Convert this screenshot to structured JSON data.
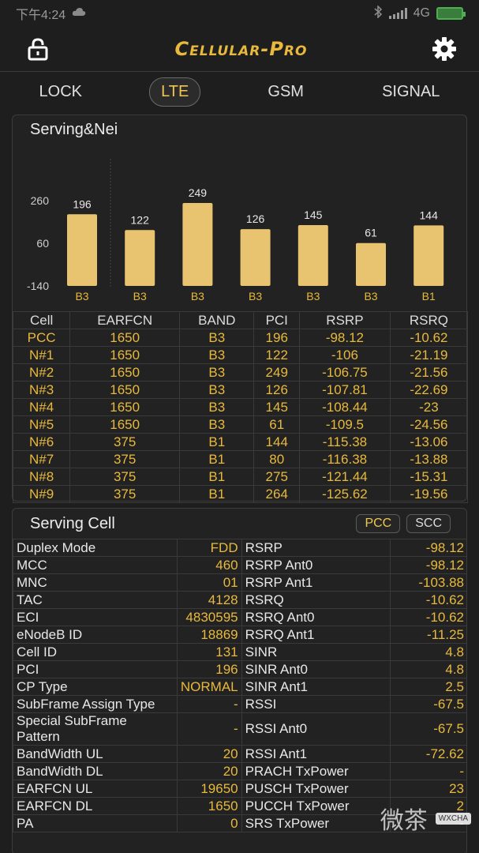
{
  "status": {
    "time": "下午4:24",
    "network": "4G"
  },
  "app": {
    "title": "Cellular-Pro"
  },
  "tabs": [
    {
      "label": "LOCK",
      "active": false
    },
    {
      "label": "LTE",
      "active": true
    },
    {
      "label": "GSM",
      "active": false
    },
    {
      "label": "SIGNAL",
      "active": false
    }
  ],
  "chart_data": {
    "type": "bar",
    "title": "Serving&Nei",
    "categories": [
      "B3",
      "B3",
      "B3",
      "B3",
      "B3",
      "B3",
      "B1"
    ],
    "values": [
      196,
      122,
      249,
      126,
      145,
      61,
      144
    ],
    "yticks": [
      260,
      60,
      -140
    ],
    "ylim": [
      -140,
      260
    ],
    "bar_color": "#e8c370"
  },
  "nei_table": {
    "headers": [
      "Cell",
      "EARFCN",
      "BAND",
      "PCI",
      "RSRP",
      "RSRQ"
    ],
    "rows": [
      [
        "PCC",
        "1650",
        "B3",
        "196",
        "-98.12",
        "-10.62"
      ],
      [
        "N#1",
        "1650",
        "B3",
        "122",
        "-106",
        "-21.19"
      ],
      [
        "N#2",
        "1650",
        "B3",
        "249",
        "-106.75",
        "-21.56"
      ],
      [
        "N#3",
        "1650",
        "B3",
        "126",
        "-107.81",
        "-22.69"
      ],
      [
        "N#4",
        "1650",
        "B3",
        "145",
        "-108.44",
        "-23"
      ],
      [
        "N#5",
        "1650",
        "B3",
        "61",
        "-109.5",
        "-24.56"
      ],
      [
        "N#6",
        "375",
        "B1",
        "144",
        "-115.38",
        "-13.06"
      ],
      [
        "N#7",
        "375",
        "B1",
        "80",
        "-116.38",
        "-13.88"
      ],
      [
        "N#8",
        "375",
        "B1",
        "275",
        "-121.44",
        "-15.31"
      ],
      [
        "N#9",
        "375",
        "B1",
        "264",
        "-125.62",
        "-19.56"
      ]
    ]
  },
  "serving": {
    "title": "Serving Cell",
    "pcc_label": "PCC",
    "scc_label": "SCC",
    "rows": [
      [
        "Duplex Mode",
        "FDD",
        "RSRP",
        "-98.12"
      ],
      [
        "MCC",
        "460",
        "RSRP Ant0",
        "-98.12"
      ],
      [
        "MNC",
        "01",
        "RSRP Ant1",
        "-103.88"
      ],
      [
        "TAC",
        "4128",
        "RSRQ",
        "-10.62"
      ],
      [
        "ECI",
        "4830595",
        "RSRQ Ant0",
        "-10.62"
      ],
      [
        "eNodeB ID",
        "18869",
        "RSRQ Ant1",
        "-11.25"
      ],
      [
        "Cell ID",
        "131",
        "SINR",
        "4.8"
      ],
      [
        "PCI",
        "196",
        "SINR Ant0",
        "4.8"
      ],
      [
        "CP Type",
        "NORMAL",
        "SINR Ant1",
        "2.5"
      ],
      [
        "SubFrame Assign Type",
        "-",
        "RSSI",
        "-67.5"
      ],
      [
        "Special SubFrame Pattern",
        "-",
        "RSSI Ant0",
        "-67.5"
      ],
      [
        "BandWidth UL",
        "20",
        "RSSI Ant1",
        "-72.62"
      ],
      [
        "BandWidth DL",
        "20",
        "PRACH TxPower",
        "-"
      ],
      [
        "EARFCN UL",
        "19650",
        "PUSCH TxPower",
        "23"
      ],
      [
        "EARFCN DL",
        "1650",
        "PUCCH TxPower",
        "2"
      ],
      [
        "PA",
        "0",
        "SRS  TxPower",
        "-"
      ]
    ]
  },
  "watermark": {
    "text": "微茶",
    "badge": "WXCHA"
  },
  "colors": {
    "accent": "#e8b93c",
    "background": "#1e1e1e",
    "bar": "#e8c370"
  }
}
